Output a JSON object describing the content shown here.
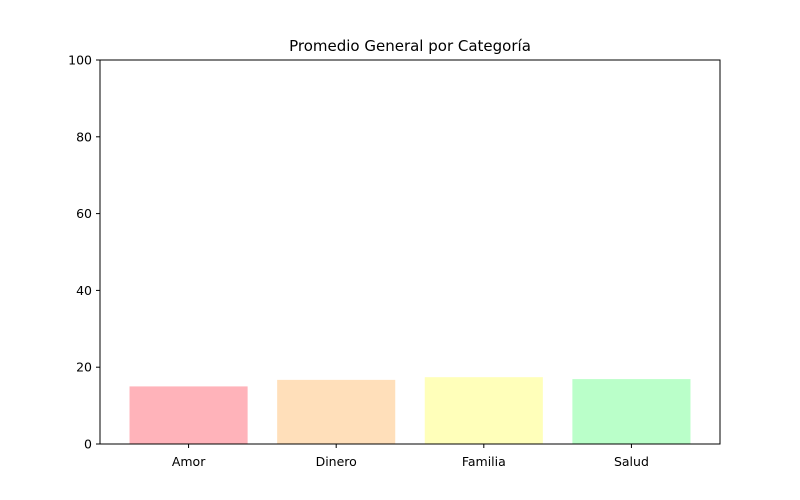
{
  "chart_data": {
    "type": "bar",
    "title": "Promedio General por Categoría",
    "xlabel": "",
    "ylabel": "",
    "categories": [
      "Amor",
      "Dinero",
      "Familia",
      "Salud"
    ],
    "values": [
      15.0,
      16.7,
      17.4,
      16.9
    ],
    "colors": [
      "#ffb3ba",
      "#ffdfba",
      "#ffffba",
      "#baffc9"
    ],
    "ylim": [
      0,
      100
    ],
    "yticks": [
      0,
      20,
      40,
      60,
      80,
      100
    ],
    "grid": false,
    "legend": "none"
  }
}
